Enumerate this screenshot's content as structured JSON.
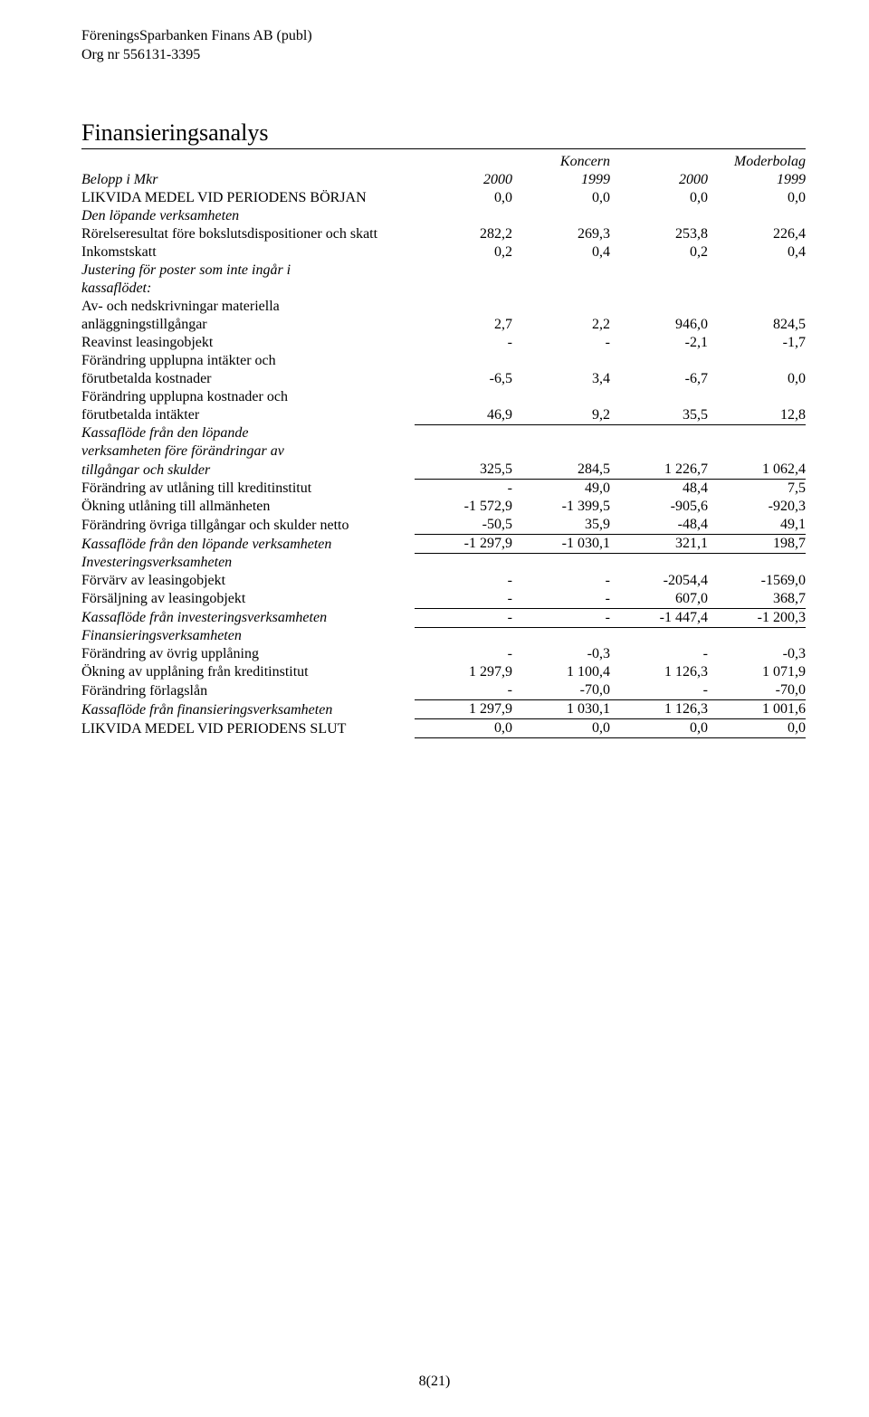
{
  "header": {
    "company_name": "FöreningsSparbanken Finans AB (publ)",
    "org_nr": "Org nr 556131-3395"
  },
  "title": "Finansieringsanalys",
  "column_groups": {
    "g1": "Koncern",
    "g2": "Moderbolag"
  },
  "row_header": {
    "label": "Belopp i Mkr",
    "c1": "2000",
    "c2": "1999",
    "c3": "2000",
    "c4": "1999"
  },
  "rows": {
    "likvida_borjan": {
      "label": "LIKVIDA MEDEL VID PERIODENS BÖRJAN",
      "c1": "0,0",
      "c2": "0,0",
      "c3": "0,0",
      "c4": "0,0"
    },
    "lopande_hdr": {
      "label": "Den löpande verksamheten"
    },
    "rorelse": {
      "label": "Rörelseresultat före bokslutsdispositioner och skatt",
      "c1": "282,2",
      "c2": "269,3",
      "c3": "253,8",
      "c4": "226,4"
    },
    "inkomst": {
      "label": "Inkomstskatt",
      "c1": "0,2",
      "c2": "0,4",
      "c3": "0,2",
      "c4": "0,4"
    },
    "justering_hdr1": {
      "label": "Justering för poster som inte ingår i"
    },
    "justering_hdr2": {
      "label": "kassaflödet:"
    },
    "nedskr1": {
      "label": "Av- och nedskrivningar materiella"
    },
    "nedskr2": {
      "label": "anläggningstillgångar",
      "c1": "2,7",
      "c2": "2,2",
      "c3": "946,0",
      "c4": "824,5"
    },
    "reavinst": {
      "label": "Reavinst leasingobjekt",
      "c1": "-",
      "c2": "-",
      "c3": "-2,1",
      "c4": "-1,7"
    },
    "forand_int1": {
      "label": "Förändring upplupna intäkter och"
    },
    "forand_int2": {
      "label": "förutbetalda kostnader",
      "c1": "-6,5",
      "c2": "3,4",
      "c3": "-6,7",
      "c4": "0,0"
    },
    "forand_kost1": {
      "label": "Förändring upplupna kostnader och"
    },
    "forand_kost2": {
      "label": "förutbetalda intäkter",
      "c1": "46,9",
      "c2": "9,2",
      "c3": "35,5",
      "c4": "12,8"
    },
    "kf_lop_hdr1": {
      "label": "Kassaflöde från den löpande"
    },
    "kf_lop_hdr2": {
      "label": "verksamheten före förändringar av"
    },
    "kf_lop_hdr3": {
      "label": "tillgångar och skulder",
      "c1": "325,5",
      "c2": "284,5",
      "c3": "1 226,7",
      "c4": "1 062,4"
    },
    "forand_utl": {
      "label": "Förändring av utlåning till kreditinstitut",
      "c1": "-",
      "c2": "49,0",
      "c3": "48,4",
      "c4": "7,5"
    },
    "okning_utl": {
      "label": "Ökning utlåning till allmänheten",
      "c1": "-1 572,9",
      "c2": "-1 399,5",
      "c3": "-905,6",
      "c4": "-920,3"
    },
    "forand_ovr": {
      "label": "Förändring övriga tillgångar och skulder netto",
      "c1": "-50,5",
      "c2": "35,9",
      "c3": "-48,4",
      "c4": "49,1"
    },
    "kf_lop_tot": {
      "label": "Kassaflöde från den löpande verksamheten",
      "c1": "-1 297,9",
      "c2": "-1 030,1",
      "c3": "321,1",
      "c4": "198,7"
    },
    "inv_hdr": {
      "label": "Investeringsverksamheten"
    },
    "forvarv": {
      "label": "Förvärv av leasingobjekt",
      "c1": "-",
      "c2": "-",
      "c3": "-2054,4",
      "c4": "-1569,0"
    },
    "forsalj": {
      "label": "Försäljning av leasingobjekt",
      "c1": "-",
      "c2": "-",
      "c3": "607,0",
      "c4": "368,7"
    },
    "kf_inv": {
      "label": "Kassaflöde från investeringsverksamheten",
      "c1": "-",
      "c2": "-",
      "c3": "-1 447,4",
      "c4": "-1 200,3"
    },
    "fin_hdr": {
      "label": "Finansieringsverksamheten"
    },
    "forand_upl": {
      "label": "Förändring av övrig upplåning",
      "c1": "-",
      "c2": "-0,3",
      "c3": "-",
      "c4": "-0,3"
    },
    "okning_upl": {
      "label": "Ökning av upplåning från kreditinstitut",
      "c1": "1 297,9",
      "c2": "1 100,4",
      "c3": "1 126,3",
      "c4": "1 071,9"
    },
    "forlag": {
      "label": "Förändring förlagslån",
      "c1": "-",
      "c2": "-70,0",
      "c3": "-",
      "c4": "-70,0"
    },
    "kf_fin": {
      "label": "Kassaflöde från finansieringsverksamheten",
      "c1": "1 297,9",
      "c2": "1 030,1",
      "c3": "1 126,3",
      "c4": "1 001,6"
    },
    "likvida_slut": {
      "label": "LIKVIDA MEDEL VID PERIODENS SLUT",
      "c1": "0,0",
      "c2": "0,0",
      "c3": "0,0",
      "c4": "0,0"
    }
  },
  "page_number": "8(21)"
}
